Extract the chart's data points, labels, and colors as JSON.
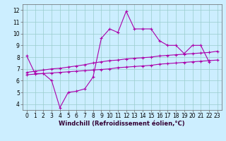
{
  "xlabel": "Windchill (Refroidissement éolien,°C)",
  "bg_color": "#cceeff",
  "grid_color": "#99cccc",
  "line_color": "#aa00aa",
  "xlim": [
    -0.5,
    23.5
  ],
  "ylim": [
    3.5,
    12.5
  ],
  "xticks": [
    0,
    1,
    2,
    3,
    4,
    5,
    6,
    7,
    8,
    9,
    10,
    11,
    12,
    13,
    14,
    15,
    16,
    17,
    18,
    19,
    20,
    21,
    22,
    23
  ],
  "yticks": [
    4,
    5,
    6,
    7,
    8,
    9,
    10,
    11,
    12
  ],
  "line1_x": [
    0,
    1,
    2,
    3,
    4,
    5,
    6,
    7,
    8,
    9,
    10,
    11,
    12,
    13,
    14,
    15,
    16,
    17,
    18,
    19,
    20,
    21,
    22
  ],
  "line1_y": [
    8.1,
    6.6,
    6.6,
    6.0,
    3.7,
    5.0,
    5.1,
    5.3,
    6.3,
    9.6,
    10.4,
    10.1,
    11.9,
    10.4,
    10.4,
    10.4,
    9.4,
    9.0,
    9.0,
    8.3,
    9.0,
    9.0,
    7.6
  ],
  "line2_x": [
    0,
    1,
    2,
    3,
    4,
    5,
    6,
    7,
    8,
    9,
    10,
    11,
    12,
    13,
    14,
    15,
    16,
    17,
    18,
    19,
    20,
    21,
    22,
    23
  ],
  "line2_y": [
    6.7,
    6.8,
    6.9,
    7.0,
    7.05,
    7.15,
    7.25,
    7.35,
    7.5,
    7.6,
    7.7,
    7.75,
    7.85,
    7.9,
    7.95,
    8.0,
    8.1,
    8.15,
    8.2,
    8.25,
    8.3,
    8.35,
    8.4,
    8.5
  ],
  "line3_x": [
    0,
    1,
    2,
    3,
    4,
    5,
    6,
    7,
    8,
    9,
    10,
    11,
    12,
    13,
    14,
    15,
    16,
    17,
    18,
    19,
    20,
    21,
    22,
    23
  ],
  "line3_y": [
    6.5,
    6.55,
    6.6,
    6.65,
    6.7,
    6.75,
    6.8,
    6.85,
    6.9,
    6.95,
    7.0,
    7.1,
    7.15,
    7.2,
    7.25,
    7.3,
    7.4,
    7.45,
    7.5,
    7.55,
    7.6,
    7.65,
    7.7,
    7.75
  ],
  "marker": "+",
  "markersize": 3,
  "linewidth": 0.8,
  "tick_fontsize": 5.5,
  "xlabel_fontsize": 6.0
}
